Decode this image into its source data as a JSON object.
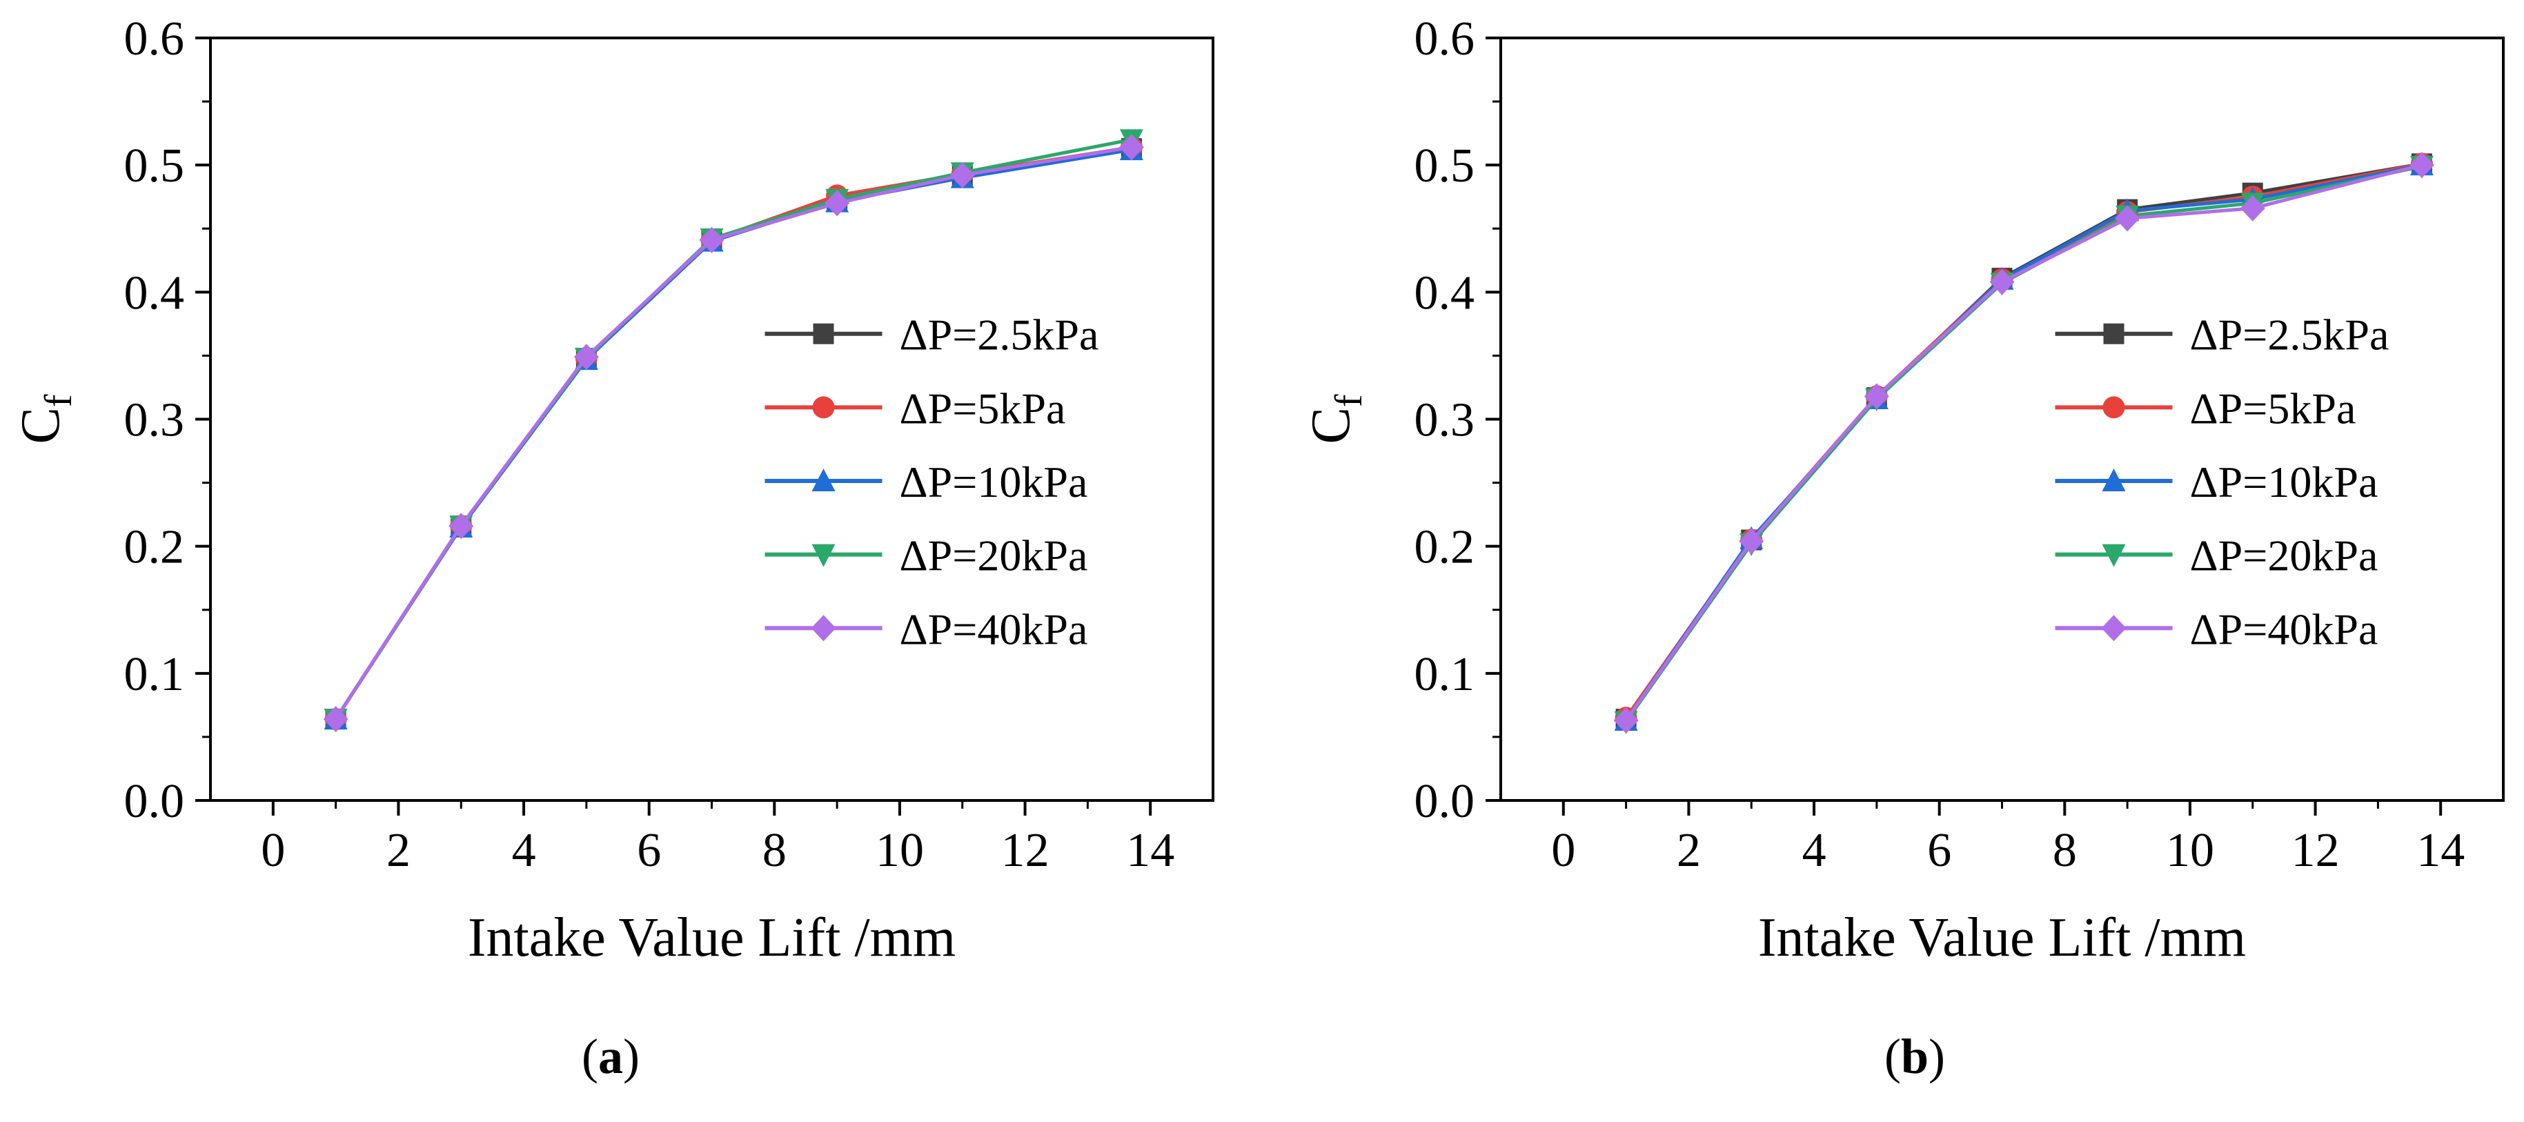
{
  "chart_data": [
    {
      "type": "line",
      "panel_label": "a",
      "x": [
        1,
        3,
        5,
        7,
        9,
        11,
        13.7
      ],
      "series": [
        {
          "name": "ΔP=2.5kPa",
          "color": "#404040",
          "marker": "square",
          "values": [
            0.064,
            0.216,
            0.348,
            0.441,
            0.472,
            0.492,
            0.513
          ]
        },
        {
          "name": "ΔP=5kPa",
          "color": "#e8413b",
          "marker": "circle",
          "values": [
            0.064,
            0.216,
            0.348,
            0.441,
            0.476,
            0.493,
            0.514
          ]
        },
        {
          "name": "ΔP=10kPa",
          "color": "#1f6dd6",
          "marker": "triangle-up",
          "values": [
            0.064,
            0.215,
            0.347,
            0.44,
            0.471,
            0.49,
            0.512
          ]
        },
        {
          "name": "ΔP=20kPa",
          "color": "#2aa86a",
          "marker": "triangle-down",
          "values": [
            0.064,
            0.216,
            0.348,
            0.442,
            0.473,
            0.494,
            0.52
          ]
        },
        {
          "name": "ΔP=40kPa",
          "color": "#b06ee8",
          "marker": "diamond",
          "values": [
            0.064,
            0.216,
            0.349,
            0.441,
            0.47,
            0.492,
            0.514
          ]
        }
      ],
      "xlabel": "Intake Value Lift /mm",
      "ylabel_main": "C",
      "ylabel_sub": "f",
      "xlim": [
        -1,
        15
      ],
      "ylim": [
        0,
        0.6
      ],
      "xticks": [
        "0",
        "2",
        "4",
        "6",
        "8",
        "10",
        "12",
        "14"
      ],
      "yticks": [
        "0.0",
        "0.1",
        "0.2",
        "0.3",
        "0.4",
        "0.5",
        "0.6"
      ],
      "legend_position": "right"
    },
    {
      "type": "line",
      "panel_label": "b",
      "x": [
        1,
        3,
        5,
        7,
        9,
        11,
        13.7
      ],
      "series": [
        {
          "name": "ΔP=2.5kPa",
          "color": "#404040",
          "marker": "square",
          "values": [
            0.064,
            0.205,
            0.317,
            0.411,
            0.465,
            0.478,
            0.501
          ]
        },
        {
          "name": "ΔP=5kPa",
          "color": "#e8413b",
          "marker": "circle",
          "values": [
            0.065,
            0.205,
            0.318,
            0.41,
            0.463,
            0.475,
            0.501
          ]
        },
        {
          "name": "ΔP=10kPa",
          "color": "#1f6dd6",
          "marker": "triangle-up",
          "values": [
            0.063,
            0.206,
            0.316,
            0.41,
            0.464,
            0.473,
            0.5
          ]
        },
        {
          "name": "ΔP=20kPa",
          "color": "#2aa86a",
          "marker": "triangle-down",
          "values": [
            0.062,
            0.202,
            0.316,
            0.407,
            0.46,
            0.47,
            0.499
          ]
        },
        {
          "name": "ΔP=40kPa",
          "color": "#b06ee8",
          "marker": "diamond",
          "values": [
            0.063,
            0.204,
            0.318,
            0.408,
            0.458,
            0.466,
            0.5
          ]
        }
      ],
      "xlabel": "Intake Value Lift /mm",
      "ylabel_main": "C",
      "ylabel_sub": "f",
      "xlim": [
        -1,
        15
      ],
      "ylim": [
        0,
        0.6
      ],
      "xticks": [
        "0",
        "2",
        "4",
        "6",
        "8",
        "10",
        "12",
        "14"
      ],
      "yticks": [
        "0.0",
        "0.1",
        "0.2",
        "0.3",
        "0.4",
        "0.5",
        "0.6"
      ],
      "legend_position": "right"
    }
  ]
}
